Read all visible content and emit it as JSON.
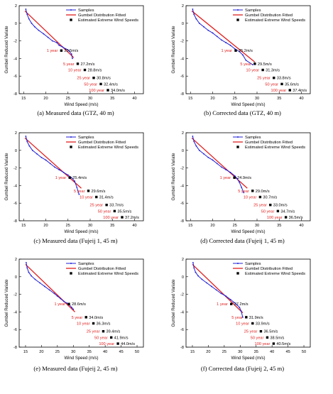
{
  "colors": {
    "samples": "#1f1fd8",
    "fit": "#e02020",
    "estimate": "#000000",
    "return_period_label": "#e02020"
  },
  "chart_data": [
    {
      "type": "line",
      "caption": "(a) Measured data (GTZ, 40 m)",
      "xlabel": "Wind Speed (m/s)",
      "ylabel": "Gumbel Reduced Variate",
      "xlim": [
        14,
        42
      ],
      "ylim": [
        -8,
        2
      ],
      "xticks": [
        "15",
        "20",
        "25",
        "30",
        "35",
        "40"
      ],
      "yticks": [
        "2",
        "0",
        "-2",
        "-4",
        "-6",
        "-8"
      ],
      "legend": [
        "Samples",
        "Gumbel Distribution Fitted",
        "Estimated Extreme Wind Speeds"
      ],
      "legend_position": "top-right",
      "samples": {
        "x": [
          15.5,
          15.8,
          16.2,
          16.8,
          17.5,
          18.4,
          19.5,
          20.5,
          21.5,
          22.5,
          23.0,
          23.8,
          24.5,
          25.2,
          25.8,
          26.0
        ],
        "y": [
          1.6,
          1.0,
          0.5,
          0.0,
          -0.4,
          -0.8,
          -1.2,
          -1.6,
          -2.0,
          -2.2,
          -2.5,
          -2.7,
          -2.9,
          -3.1,
          -3.5,
          -4.0
        ]
      },
      "fit": {
        "x": [
          15.3,
          26.3
        ],
        "y": [
          1.4,
          -3.9
        ]
      },
      "estimates": [
        {
          "period": "1 year",
          "speed": 23.5,
          "label": "23.5m/s",
          "y": -3.1
        },
        {
          "period": "5 year",
          "speed": 27.2,
          "label": "27.2m/s",
          "y": -4.6
        },
        {
          "period": "10 year",
          "speed": 28.8,
          "label": "28.8m/s",
          "y": -5.3
        },
        {
          "period": "25 year",
          "speed": 30.8,
          "label": "30.8m/s",
          "y": -6.2
        },
        {
          "period": "50 year",
          "speed": 32.4,
          "label": "32.4m/s",
          "y": -6.9
        },
        {
          "period": "100 year",
          "speed": 34.0,
          "label": "34.0m/s",
          "y": -7.6
        }
      ]
    },
    {
      "type": "line",
      "caption": "(b) Corrected data (GTZ, 40 m)",
      "xlabel": "Wind Speed (m/s)",
      "ylabel": "Gumbel Reduced Variate",
      "xlim": [
        14,
        42
      ],
      "ylim": [
        -8,
        2
      ],
      "xticks": [
        "15",
        "20",
        "25",
        "30",
        "35",
        "40"
      ],
      "yticks": [
        "2",
        "0",
        "-2",
        "-4",
        "-6",
        "-8"
      ],
      "legend": [
        "Samples",
        "Gumbel Distribution Fitted",
        "Estimated Extreme Wind Speeds"
      ],
      "legend_position": "top-right",
      "samples": {
        "x": [
          15.5,
          15.8,
          16.3,
          17.0,
          18.0,
          19.0,
          20.0,
          21.0,
          22.0,
          23.0,
          24.0,
          25.0,
          26.0,
          26.8,
          27.5,
          29.0
        ],
        "y": [
          1.6,
          1.0,
          0.5,
          0.0,
          -0.4,
          -0.8,
          -1.1,
          -1.5,
          -1.9,
          -2.2,
          -2.5,
          -2.9,
          -3.2,
          -3.6,
          -4.2,
          -4.7
        ]
      },
      "fit": {
        "x": [
          15.3,
          29.5
        ],
        "y": [
          1.4,
          -4.4
        ]
      },
      "estimates": [
        {
          "period": "1 year",
          "speed": 25.2,
          "label": "25.2m/s",
          "y": -3.1
        },
        {
          "period": "5 year",
          "speed": 29.5,
          "label": "29.5m/s",
          "y": -4.6
        },
        {
          "period": "10 year",
          "speed": 31.3,
          "label": "31.3m/s",
          "y": -5.3
        },
        {
          "period": "25 year",
          "speed": 33.8,
          "label": "33.8m/s",
          "y": -6.2
        },
        {
          "period": "50 year",
          "speed": 35.6,
          "label": "35.6m/s",
          "y": -6.9
        },
        {
          "period": "100 year",
          "speed": 37.4,
          "label": "37.4m/s",
          "y": -7.6
        }
      ]
    },
    {
      "type": "line",
      "caption": "(c) Measured data (Fujeij 1, 45 m)",
      "xlabel": "Wind Speed (m/s)",
      "ylabel": "Gumbel Reduced Variate",
      "xlim": [
        14,
        42
      ],
      "ylim": [
        -8,
        2
      ],
      "xticks": [
        "15",
        "20",
        "25",
        "30",
        "35",
        "40"
      ],
      "yticks": [
        "2",
        "0",
        "-2",
        "-4",
        "-6",
        "-8"
      ],
      "legend": [
        "Samples",
        "Gumbel Distribution Fitted",
        "Estimated Extreme Wind Speeds"
      ],
      "legend_position": "top-right",
      "samples": {
        "x": [
          15.5,
          15.8,
          16.3,
          17.0,
          18.0,
          19.0,
          20.0,
          21.0,
          22.0,
          23.0,
          24.0,
          25.0,
          25.8,
          26.5,
          27.0,
          27.5
        ],
        "y": [
          1.6,
          1.0,
          0.5,
          0.0,
          -0.4,
          -0.8,
          -1.1,
          -1.5,
          -1.9,
          -2.2,
          -2.5,
          -2.8,
          -3.1,
          -3.5,
          -4.2,
          -5.0
        ]
      },
      "fit": {
        "x": [
          15.3,
          28.0
        ],
        "y": [
          1.4,
          -4.3
        ]
      },
      "estimates": [
        {
          "period": "1 year",
          "speed": 25.4,
          "label": "25.4m/s",
          "y": -3.1
        },
        {
          "period": "5 year",
          "speed": 29.6,
          "label": "29.6m/s",
          "y": -4.6
        },
        {
          "period": "10 year",
          "speed": 31.4,
          "label": "31.4m/s",
          "y": -5.3
        },
        {
          "period": "25 year",
          "speed": 33.7,
          "label": "33.7m/s",
          "y": -6.2
        },
        {
          "period": "50 year",
          "speed": 35.5,
          "label": "35.5m/s",
          "y": -6.9
        },
        {
          "period": "100 year",
          "speed": 37.2,
          "label": "37.2m/s",
          "y": -7.6
        }
      ]
    },
    {
      "type": "line",
      "caption": "(d) Corrected data (Fujeij 1, 45 m)",
      "xlabel": "Wind Speed (m/s)",
      "ylabel": "Gumbel Reduced Variate",
      "xlim": [
        14,
        42
      ],
      "ylim": [
        -8,
        2
      ],
      "xticks": [
        "15",
        "20",
        "25",
        "30",
        "35",
        "40"
      ],
      "yticks": [
        "2",
        "0",
        "-2",
        "-4",
        "-6",
        "-8"
      ],
      "legend": [
        "Samples",
        "Gumbel Distribution Fitted",
        "Estimated Extreme Wind Speeds"
      ],
      "legend_position": "top-right",
      "samples": {
        "x": [
          15.5,
          15.8,
          16.3,
          17.0,
          18.0,
          19.0,
          20.0,
          21.0,
          22.0,
          23.0,
          24.0,
          25.0,
          25.5,
          26.0,
          26.5,
          27.0
        ],
        "y": [
          1.6,
          1.0,
          0.5,
          0.0,
          -0.4,
          -0.8,
          -1.1,
          -1.5,
          -1.9,
          -2.2,
          -2.5,
          -2.9,
          -3.2,
          -3.6,
          -4.2,
          -4.8
        ]
      },
      "fit": {
        "x": [
          15.3,
          27.8
        ],
        "y": [
          1.4,
          -4.3
        ]
      },
      "estimates": [
        {
          "period": "1 year",
          "speed": 24.9,
          "label": "24.9m/s",
          "y": -3.1
        },
        {
          "period": "5 year",
          "speed": 29.0,
          "label": "29.0m/s",
          "y": -4.6
        },
        {
          "period": "10 year",
          "speed": 30.7,
          "label": "30.7m/s",
          "y": -5.3
        },
        {
          "period": "25 year",
          "speed": 33.0,
          "label": "33.0m/s",
          "y": -6.2
        },
        {
          "period": "50 year",
          "speed": 34.7,
          "label": "34.7m/s",
          "y": -6.9
        },
        {
          "period": "100 year",
          "speed": 36.5,
          "label": "36.5m/s",
          "y": -7.6
        }
      ]
    },
    {
      "type": "line",
      "caption": "(e) Measured data (Fujeij 2, 45 m)",
      "xlabel": "Wind Speed (m/s)",
      "ylabel": "Gumbel Reduced Variate",
      "xlim": [
        13,
        52
      ],
      "ylim": [
        -8,
        2
      ],
      "xticks": [
        "15",
        "20",
        "25",
        "30",
        "35",
        "40",
        "45",
        "50"
      ],
      "yticks": [
        "2",
        "0",
        "-2",
        "-4",
        "-6",
        "-8"
      ],
      "legend": [
        "Samples",
        "Gumbel Distribution Fitted",
        "Estimated Extreme Wind Speeds"
      ],
      "legend_position": "top-right",
      "samples": {
        "x": [
          15.2,
          15.5,
          16.0,
          16.8,
          18.0,
          19.5,
          21.0,
          22.5,
          24.0,
          25.0,
          26.0,
          27.0,
          28.0,
          28.8,
          29.5,
          30.0
        ],
        "y": [
          1.6,
          1.0,
          0.5,
          0.1,
          -0.3,
          -0.7,
          -1.1,
          -1.5,
          -1.9,
          -2.2,
          -2.5,
          -2.8,
          -3.0,
          -3.2,
          -3.5,
          -3.7
        ]
      },
      "fit": {
        "x": [
          15.0,
          30.5
        ],
        "y": [
          1.4,
          -4.0
        ]
      },
      "estimates": [
        {
          "period": "1 year",
          "speed": 28.6,
          "label": "28.6m/s",
          "y": -3.1
        },
        {
          "period": "5 year",
          "speed": 34.0,
          "label": "34.0m/s",
          "y": -4.6
        },
        {
          "period": "10 year",
          "speed": 36.3,
          "label": "36.3m/s",
          "y": -5.3
        },
        {
          "period": "25 year",
          "speed": 39.4,
          "label": "39.4m/s",
          "y": -6.2
        },
        {
          "period": "50 year",
          "speed": 41.9,
          "label": "41.9m/s",
          "y": -6.9
        },
        {
          "period": "100 year",
          "speed": 44.0,
          "label": "44.0m/s",
          "y": -7.6
        }
      ]
    },
    {
      "type": "line",
      "caption": "(f) Corrected data (Fujeij 2, 45 m)",
      "xlabel": "Wind Speed (m/s)",
      "ylabel": "Gumbel Reduced Variate",
      "xlim": [
        13,
        52
      ],
      "ylim": [
        -8,
        2
      ],
      "xticks": [
        "15",
        "20",
        "25",
        "30",
        "35",
        "40",
        "45",
        "50"
      ],
      "yticks": [
        "2",
        "0",
        "-2",
        "-4",
        "-6",
        "-8"
      ],
      "legend": [
        "Samples",
        "Gumbel Distribution Fitted",
        "Estimated Extreme Wind Speeds"
      ],
      "legend_position": "top-right",
      "samples": {
        "x": [
          15.2,
          15.5,
          16.0,
          16.8,
          18.0,
          19.5,
          21.0,
          22.5,
          24.0,
          25.5,
          27.0,
          28.0,
          29.0,
          29.8,
          30.3,
          30.8
        ],
        "y": [
          1.6,
          1.0,
          0.5,
          0.1,
          -0.3,
          -0.7,
          -1.1,
          -1.5,
          -1.9,
          -2.2,
          -2.6,
          -2.9,
          -3.2,
          -3.5,
          -3.9,
          -4.6
        ]
      },
      "fit": {
        "x": [
          15.0,
          30.8
        ],
        "y": [
          1.4,
          -4.1
        ]
      },
      "estimates": [
        {
          "period": "1 year",
          "speed": 27.2,
          "label": "27.2m/s",
          "y": -3.1
        },
        {
          "period": "5 year",
          "speed": 31.9,
          "label": "31.9m/s",
          "y": -4.6
        },
        {
          "period": "10 year",
          "speed": 33.9,
          "label": "33.9m/s",
          "y": -5.3
        },
        {
          "period": "25 year",
          "speed": 36.5,
          "label": "36.5m/s",
          "y": -6.2
        },
        {
          "period": "50 year",
          "speed": 38.5,
          "label": "38.5m/s",
          "y": -6.9
        },
        {
          "period": "100 year",
          "speed": 40.5,
          "label": "40.5m/s",
          "y": -7.6
        }
      ]
    }
  ]
}
